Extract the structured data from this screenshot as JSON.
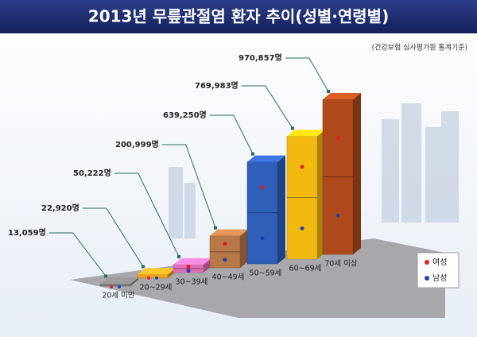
{
  "chart_data": {
    "type": "bar3d",
    "title": "2013년 무릎관절염 환자 추이(성별·연령별)",
    "subtitle": "(건강보험 심사평가원 통계기준)",
    "categories": [
      "20세 미만",
      "20~29세",
      "30~39세",
      "40~49세",
      "50~59세",
      "60~69세",
      "70세 이상"
    ],
    "values": [
      13059,
      22920,
      50222,
      200999,
      639250,
      769983,
      970857
    ],
    "value_labels": [
      "13,059명",
      "22,920명",
      "50,222명",
      "200,999명",
      "639,250명",
      "769,983명",
      "970,857명"
    ],
    "colors": [
      "#7d7d7d",
      "#f0a020",
      "#e070b8",
      "#b87848",
      "#2f5fb8",
      "#f2b90f",
      "#b04a1c"
    ],
    "legend": [
      {
        "name": "여성",
        "color": "#e02020"
      },
      {
        "name": "남성",
        "color": "#2040b0"
      }
    ],
    "legend_position": "lower right"
  }
}
